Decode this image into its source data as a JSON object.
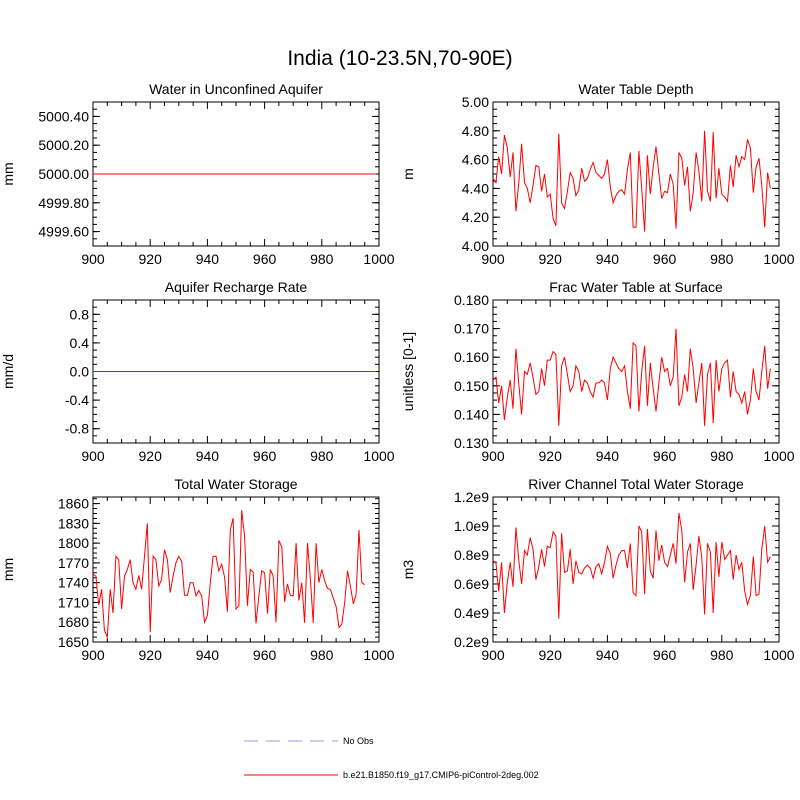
{
  "title": "India (10-23.5N,70-90E)",
  "legend": {
    "entries": [
      {
        "label": "No Obs",
        "color": "#9999ee",
        "style": "dashed"
      },
      {
        "label": "b.e21.B1850.f19_g17.CMIP6-piControl-2deg.002",
        "color": "#ff0000",
        "style": "solid"
      }
    ]
  },
  "chart_data": [
    {
      "type": "line",
      "title": "Water in Unconfined Aquifer",
      "xlabel": "",
      "ylabel": "mm",
      "xlim": [
        900,
        1000
      ],
      "ylim": [
        4999.5,
        5000.5
      ],
      "xticks": [
        900,
        920,
        940,
        960,
        980,
        1000
      ],
      "yticks": [
        4999.6,
        4999.8,
        5000.0,
        5000.2,
        5000.4
      ],
      "ytick_labels": [
        "4999.60",
        "4999.80",
        "5000.00",
        "5000.20",
        "5000.40"
      ],
      "grid": false,
      "x_start": 900,
      "series": [
        {
          "color": "#ff0000",
          "values": [
            5000,
            5000,
            5000,
            5000,
            5000,
            5000,
            5000,
            5000,
            5000,
            5000,
            5000,
            5000,
            5000,
            5000,
            5000,
            5000,
            5000,
            5000,
            5000,
            5000,
            5000,
            5000,
            5000,
            5000,
            5000,
            5000,
            5000,
            5000,
            5000,
            5000,
            5000,
            5000,
            5000,
            5000,
            5000,
            5000,
            5000,
            5000,
            5000,
            5000,
            5000,
            5000,
            5000,
            5000,
            5000,
            5000,
            5000,
            5000,
            5000,
            5000,
            5000,
            5000,
            5000,
            5000,
            5000,
            5000,
            5000,
            5000,
            5000,
            5000,
            5000,
            5000,
            5000,
            5000,
            5000,
            5000,
            5000,
            5000,
            5000,
            5000,
            5000,
            5000,
            5000,
            5000,
            5000,
            5000,
            5000,
            5000,
            5000,
            5000,
            5000,
            5000,
            5000,
            5000,
            5000,
            5000,
            5000,
            5000,
            5000,
            5000,
            5000,
            5000,
            5000,
            5000,
            5000,
            5000,
            5000,
            5000,
            5000,
            5000
          ]
        }
      ]
    },
    {
      "type": "line",
      "title": "Water Table Depth",
      "xlabel": "",
      "ylabel": "m",
      "xlim": [
        900,
        1000
      ],
      "ylim": [
        4.0,
        5.0
      ],
      "xticks": [
        900,
        920,
        940,
        960,
        980,
        1000
      ],
      "yticks": [
        4.0,
        4.2,
        4.4,
        4.6,
        4.8,
        5.0
      ],
      "ytick_labels": [
        "4.00",
        "4.20",
        "4.40",
        "4.60",
        "4.80",
        "5.00"
      ],
      "grid": false,
      "x_start": 900,
      "series": [
        {
          "color": "#ff0000",
          "values": [
            4.47,
            4.44,
            4.62,
            4.5,
            4.77,
            4.68,
            4.48,
            4.65,
            4.24,
            4.43,
            4.71,
            4.44,
            4.4,
            4.3,
            4.42,
            4.56,
            4.55,
            4.38,
            4.5,
            4.34,
            4.36,
            4.19,
            4.14,
            4.78,
            4.3,
            4.26,
            4.38,
            4.51,
            4.47,
            4.35,
            4.39,
            4.54,
            4.45,
            4.47,
            4.53,
            4.58,
            4.51,
            4.49,
            4.47,
            4.5,
            4.6,
            4.41,
            4.3,
            4.35,
            4.38,
            4.39,
            4.36,
            4.53,
            4.65,
            4.13,
            4.13,
            4.66,
            4.4,
            4.1,
            4.63,
            4.36,
            4.55,
            4.69,
            4.5,
            4.33,
            4.38,
            4.37,
            4.5,
            4.43,
            4.12,
            4.65,
            4.61,
            4.42,
            4.55,
            4.24,
            4.37,
            4.65,
            4.52,
            4.31,
            4.8,
            4.38,
            4.31,
            4.79,
            4.33,
            4.54,
            4.36,
            4.34,
            4.31,
            4.56,
            4.41,
            4.63,
            4.55,
            4.62,
            4.6,
            4.74,
            4.68,
            4.37,
            4.55,
            4.61,
            4.42,
            4.13,
            4.51,
            4.4
          ]
        }
      ]
    },
    {
      "type": "line",
      "title": "Aquifer Recharge Rate",
      "xlabel": "",
      "ylabel": "mm/d",
      "xlim": [
        900,
        1000
      ],
      "ylim": [
        -1.0,
        1.0
      ],
      "xticks": [
        900,
        920,
        940,
        960,
        980,
        1000
      ],
      "yticks": [
        -0.8,
        -0.4,
        0.0,
        0.4,
        0.8
      ],
      "ytick_labels": [
        "-0.8",
        "-0.4",
        "0.0",
        "0.4",
        "0.8"
      ],
      "grid": false,
      "x_start": 900,
      "series": [
        {
          "color": "#ff0000",
          "values": [
            0,
            0,
            0,
            0,
            0,
            0,
            0,
            0,
            0,
            0,
            0,
            0,
            0,
            0,
            0,
            0,
            0,
            0,
            0,
            0,
            0,
            0,
            0,
            0,
            0,
            0,
            0,
            0,
            0,
            0,
            0,
            0,
            0,
            0,
            0,
            0,
            0,
            0,
            0,
            0,
            0,
            0,
            0,
            0,
            0,
            0,
            0,
            0,
            0,
            0,
            0,
            0,
            0,
            0,
            0,
            0,
            0,
            0,
            0,
            0,
            0,
            0,
            0,
            0,
            0,
            0,
            0,
            0,
            0,
            0,
            0,
            0,
            0,
            0,
            0,
            0,
            0,
            0,
            0,
            0,
            0,
            0,
            0,
            0,
            0,
            0,
            0,
            0,
            0,
            0,
            0,
            0,
            0,
            0,
            0,
            0,
            0,
            0,
            0,
            0
          ]
        }
      ]
    },
    {
      "type": "line",
      "title": "Frac Water Table at Surface",
      "xlabel": "",
      "ylabel": "unitless [0-1]",
      "xlim": [
        900,
        1000
      ],
      "ylim": [
        0.13,
        0.18
      ],
      "xticks": [
        900,
        920,
        940,
        960,
        980,
        1000
      ],
      "yticks": [
        0.13,
        0.14,
        0.15,
        0.16,
        0.17,
        0.18
      ],
      "ytick_labels": [
        "0.130",
        "0.140",
        "0.150",
        "0.160",
        "0.170",
        "0.180"
      ],
      "grid": false,
      "x_start": 900,
      "series": [
        {
          "color": "#ff0000",
          "values": [
            0.152,
            0.153,
            0.144,
            0.15,
            0.138,
            0.146,
            0.152,
            0.142,
            0.163,
            0.151,
            0.14,
            0.155,
            0.154,
            0.158,
            0.153,
            0.147,
            0.148,
            0.156,
            0.15,
            0.159,
            0.159,
            0.162,
            0.161,
            0.136,
            0.157,
            0.16,
            0.154,
            0.148,
            0.15,
            0.157,
            0.155,
            0.148,
            0.152,
            0.151,
            0.148,
            0.146,
            0.151,
            0.151,
            0.152,
            0.151,
            0.145,
            0.156,
            0.16,
            0.158,
            0.156,
            0.155,
            0.157,
            0.148,
            0.142,
            0.165,
            0.164,
            0.141,
            0.155,
            0.164,
            0.143,
            0.158,
            0.149,
            0.141,
            0.151,
            0.16,
            0.155,
            0.156,
            0.15,
            0.153,
            0.17,
            0.143,
            0.146,
            0.154,
            0.148,
            0.163,
            0.156,
            0.144,
            0.151,
            0.158,
            0.136,
            0.154,
            0.158,
            0.137,
            0.159,
            0.148,
            0.156,
            0.158,
            0.159,
            0.146,
            0.155,
            0.148,
            0.147,
            0.144,
            0.148,
            0.14,
            0.145,
            0.156,
            0.148,
            0.145,
            0.155,
            0.164,
            0.149,
            0.156
          ]
        }
      ]
    },
    {
      "type": "line",
      "title": "Total Water Storage",
      "xlabel": "",
      "ylabel": "mm",
      "xlim": [
        900,
        1000
      ],
      "ylim": [
        1650,
        1870
      ],
      "xticks": [
        900,
        920,
        940,
        960,
        980,
        1000
      ],
      "yticks": [
        1650,
        1680,
        1710,
        1740,
        1770,
        1800,
        1830,
        1860
      ],
      "ytick_labels": [
        "1650",
        "1680",
        "1710",
        "1740",
        "1770",
        "1800",
        "1830",
        "1860"
      ],
      "grid": false,
      "x_start": 900,
      "series": [
        {
          "color": "#ff0000",
          "values": [
            1753,
            1750,
            1706,
            1730,
            1668,
            1657,
            1730,
            1694,
            1780,
            1775,
            1700,
            1750,
            1760,
            1775,
            1740,
            1730,
            1751,
            1730,
            1780,
            1830,
            1665,
            1780,
            1775,
            1735,
            1745,
            1790,
            1775,
            1725,
            1750,
            1770,
            1780,
            1772,
            1721,
            1721,
            1740,
            1740,
            1720,
            1728,
            1720,
            1680,
            1690,
            1740,
            1780,
            1780,
            1758,
            1768,
            1748,
            1696,
            1820,
            1838,
            1700,
            1705,
            1850,
            1810,
            1705,
            1760,
            1756,
            1678,
            1720,
            1758,
            1755,
            1693,
            1760,
            1750,
            1680,
            1804,
            1794,
            1711,
            1738,
            1721,
            1720,
            1800,
            1713,
            1740,
            1679,
            1800,
            1745,
            1679,
            1800,
            1740,
            1760,
            1743,
            1731,
            1730,
            1717,
            1704,
            1672,
            1677,
            1710,
            1758,
            1735,
            1708,
            1722,
            1820,
            1740,
            1737
          ]
        }
      ]
    },
    {
      "type": "line",
      "title": "River Channel Total Water Storage",
      "xlabel": "",
      "ylabel": "m3",
      "xlim": [
        900,
        1000
      ],
      "ylim": [
        0.2,
        1.2
      ],
      "ylim_units": "e9",
      "xticks": [
        900,
        920,
        940,
        960,
        980,
        1000
      ],
      "yticks": [
        0.2,
        0.4,
        0.6,
        0.8,
        1.0,
        1.2
      ],
      "ytick_labels": [
        "0.2e9",
        "0.4e9",
        "0.6e9",
        "0.8e9",
        "1.0e9",
        "1.2e9"
      ],
      "grid": false,
      "x_start": 900,
      "series": [
        {
          "color": "#ff0000",
          "values": [
            0.76,
            0.75,
            0.55,
            0.75,
            0.4,
            0.61,
            0.75,
            0.58,
            0.99,
            0.77,
            0.6,
            0.83,
            0.8,
            0.92,
            0.84,
            0.63,
            0.72,
            0.84,
            0.72,
            0.86,
            0.85,
            0.96,
            0.93,
            0.36,
            0.95,
            0.68,
            0.69,
            0.84,
            0.6,
            0.76,
            0.68,
            0.67,
            0.71,
            0.73,
            0.71,
            0.64,
            0.72,
            0.74,
            0.67,
            0.75,
            0.86,
            0.81,
            0.64,
            0.73,
            0.8,
            0.83,
            0.83,
            0.71,
            0.88,
            0.54,
            0.52,
            1.0,
            0.96,
            0.53,
            0.98,
            0.69,
            0.64,
            0.97,
            0.76,
            0.87,
            0.75,
            0.72,
            0.8,
            0.88,
            0.74,
            1.09,
            0.97,
            0.61,
            0.82,
            0.88,
            0.56,
            0.73,
            0.93,
            0.78,
            0.39,
            0.88,
            0.82,
            0.4,
            0.89,
            0.65,
            0.89,
            0.77,
            0.8,
            0.83,
            0.63,
            0.8,
            0.7,
            0.75,
            0.55,
            0.46,
            0.52,
            0.79,
            0.52,
            0.53,
            0.84,
            1.0,
            0.75,
            0.79
          ]
        }
      ]
    }
  ]
}
